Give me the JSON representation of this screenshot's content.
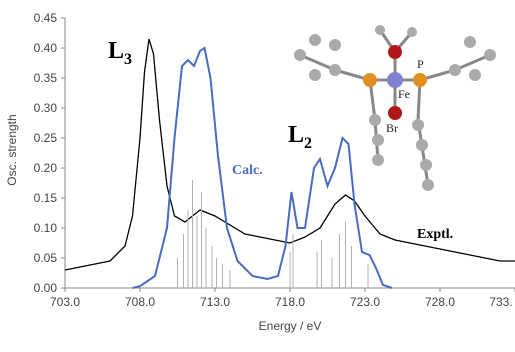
{
  "chart_data": {
    "type": "line",
    "xlabel": "Energy / eV",
    "ylabel": "Osc. strength",
    "xlim": [
      703,
      733
    ],
    "ylim": [
      0,
      0.45
    ],
    "xticks": [
      {
        "value": 703,
        "label": "703.0"
      },
      {
        "value": 708,
        "label": "708.0"
      },
      {
        "value": 713,
        "label": "713.0"
      },
      {
        "value": 718,
        "label": "718.0"
      },
      {
        "value": 723,
        "label": "723.0"
      },
      {
        "value": 728,
        "label": "728.0"
      },
      {
        "value": 733,
        "label": "733."
      }
    ],
    "yticks": [
      {
        "value": 0,
        "label": "0.00"
      },
      0.05,
      {
        "value": 0.1,
        "label": "0.10"
      },
      0.15,
      {
        "value": 0.2,
        "label": "0.20"
      },
      0.25,
      {
        "value": 0.3,
        "label": "0.30"
      },
      0.35,
      {
        "value": 0.4,
        "label": "0.40"
      },
      0.45
    ],
    "series": [
      {
        "name": "Exptl.",
        "color": "#000000",
        "x": [
          703,
          704,
          705,
          706,
          707,
          707.5,
          708,
          708.3,
          708.6,
          708.9,
          709.3,
          709.8,
          710.3,
          711,
          712,
          712.5,
          713,
          714,
          715,
          716,
          717,
          718,
          719,
          720,
          721,
          721.7,
          722.3,
          723,
          724,
          725,
          726,
          727,
          728,
          729,
          730,
          731,
          732,
          733
        ],
        "values": [
          0.03,
          0.035,
          0.04,
          0.045,
          0.07,
          0.12,
          0.25,
          0.36,
          0.415,
          0.39,
          0.28,
          0.17,
          0.12,
          0.11,
          0.13,
          0.125,
          0.12,
          0.105,
          0.09,
          0.085,
          0.08,
          0.075,
          0.085,
          0.1,
          0.14,
          0.155,
          0.145,
          0.12,
          0.09,
          0.08,
          0.075,
          0.07,
          0.065,
          0.06,
          0.055,
          0.05,
          0.045,
          0.045
        ]
      },
      {
        "name": "Calc.",
        "color": "#4a6cc0",
        "x": [
          707.5,
          708,
          709,
          709.8,
          710.3,
          710.8,
          711.2,
          711.6,
          712,
          712.3,
          712.7,
          713.2,
          713.8,
          714.5,
          715.5,
          716.5,
          717.2,
          717.7,
          718.1,
          718.5,
          719,
          719.6,
          720,
          720.5,
          721,
          721.5,
          721.9,
          722.3,
          722.8,
          723.3,
          723.7,
          724.2,
          724.8
        ],
        "values": [
          0,
          0.003,
          0.02,
          0.1,
          0.25,
          0.37,
          0.38,
          0.37,
          0.395,
          0.4,
          0.35,
          0.22,
          0.1,
          0.045,
          0.02,
          0.015,
          0.02,
          0.07,
          0.16,
          0.1,
          0.1,
          0.2,
          0.215,
          0.17,
          0.2,
          0.25,
          0.24,
          0.14,
          0.06,
          0.055,
          0.035,
          0.005,
          0
        ]
      },
      {
        "type": "stick",
        "color": "#b0b0b0",
        "x": [
          710.5,
          710.9,
          711.2,
          711.5,
          711.8,
          712.1,
          712.4,
          712.8,
          713.1,
          713.5,
          714,
          718,
          718.2,
          719.8,
          720.1,
          720.8,
          721.3,
          721.7,
          722.1,
          723.2
        ],
        "values": [
          0.05,
          0.09,
          0.13,
          0.18,
          0.12,
          0.16,
          0.1,
          0.07,
          0.05,
          0.04,
          0.03,
          0.06,
          0.09,
          0.06,
          0.08,
          0.05,
          0.09,
          0.11,
          0.07,
          0.04
        ]
      }
    ],
    "annotations": [
      {
        "text": "L",
        "sub": "3"
      },
      {
        "text": "L",
        "sub": "2"
      }
    ],
    "molecule_labels": [
      "Fe",
      "P",
      "Br"
    ]
  }
}
